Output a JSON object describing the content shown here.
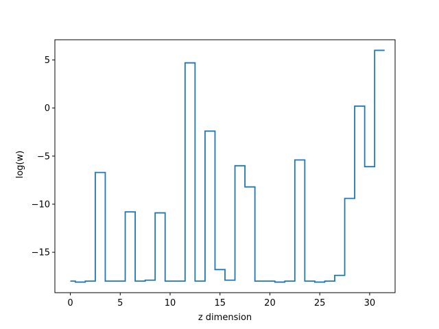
{
  "chart_data": {
    "type": "line",
    "drawstyle": "steps-mid",
    "xlabel": "z dimension",
    "ylabel": "log(w)",
    "xlim": [
      -1.55,
      32.55
    ],
    "ylim": [
      -19.2,
      7.1
    ],
    "xticks": [
      0,
      5,
      10,
      15,
      20,
      25,
      30
    ],
    "yticks": [
      -15,
      -10,
      -5,
      0,
      5
    ],
    "grid": false,
    "colors": {
      "line": "#1f77b4",
      "axes": "#000000",
      "background": "#ffffff"
    },
    "series": [
      {
        "x": [
          0,
          1,
          2,
          3,
          4,
          5,
          6,
          7,
          8,
          9,
          10,
          11,
          12,
          13,
          14,
          15,
          16,
          17,
          18,
          19,
          20,
          21,
          22,
          23,
          24,
          25,
          26,
          27,
          28,
          29,
          30,
          31
        ],
        "values": [
          -18.0,
          -18.1,
          -18.0,
          -6.7,
          -18.0,
          -18.0,
          -10.8,
          -18.0,
          -17.9,
          -10.9,
          -18.0,
          -18.0,
          4.7,
          -18.0,
          -2.4,
          -16.8,
          -17.9,
          -6.0,
          -8.2,
          -18.0,
          -18.0,
          -18.1,
          -18.0,
          -5.4,
          -18.0,
          -18.1,
          -18.0,
          -17.4,
          -9.4,
          0.2,
          -6.1,
          6.0
        ]
      }
    ]
  }
}
